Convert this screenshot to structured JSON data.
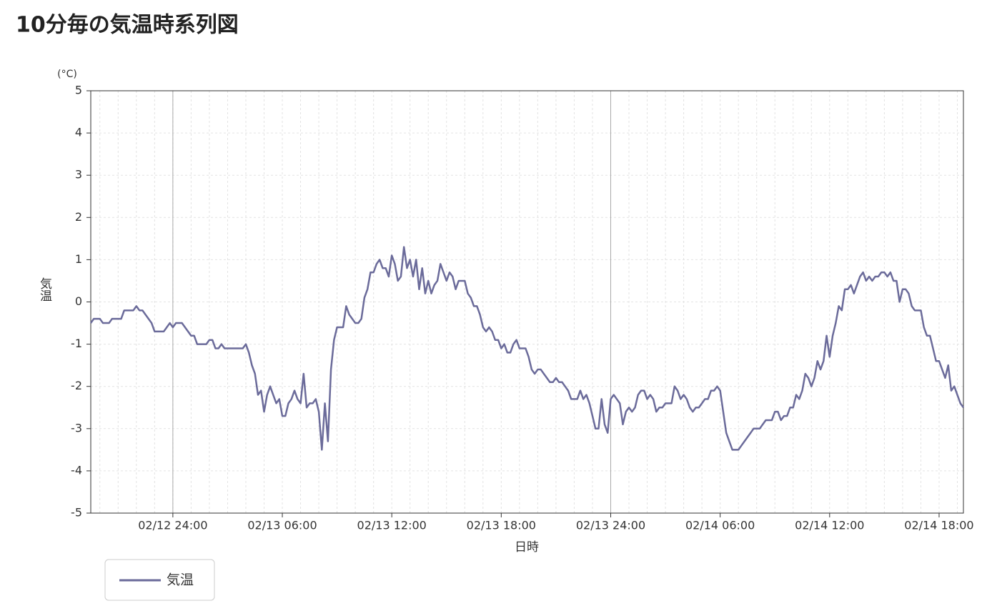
{
  "chart_data": {
    "type": "line",
    "title": "10分毎の気温時系列図",
    "y_unit": "(°C)",
    "ylabel": "気温",
    "xlabel": "日時",
    "x": [
      "02/12 19:30",
      "02/12 19:40",
      "02/12 19:50",
      "02/12 20:00",
      "02/12 20:10",
      "02/12 20:20",
      "02/12 20:30",
      "02/12 20:40",
      "02/12 20:50",
      "02/12 21:00",
      "02/12 21:10",
      "02/12 21:20",
      "02/12 21:30",
      "02/12 21:40",
      "02/12 21:50",
      "02/12 22:00",
      "02/12 22:10",
      "02/12 22:20",
      "02/12 22:30",
      "02/12 22:40",
      "02/12 22:50",
      "02/12 23:00",
      "02/12 23:10",
      "02/12 23:20",
      "02/12 23:30",
      "02/12 23:40",
      "02/12 23:50",
      "02/13 00:00",
      "02/13 00:10",
      "02/13 00:20",
      "02/13 00:30",
      "02/13 00:40",
      "02/13 00:50",
      "02/13 01:00",
      "02/13 01:10",
      "02/13 01:20",
      "02/13 01:30",
      "02/13 01:40",
      "02/13 01:50",
      "02/13 02:00",
      "02/13 02:10",
      "02/13 02:20",
      "02/13 02:30",
      "02/13 02:40",
      "02/13 02:50",
      "02/13 03:00",
      "02/13 03:10",
      "02/13 03:20",
      "02/13 03:30",
      "02/13 03:40",
      "02/13 03:50",
      "02/13 04:00",
      "02/13 04:10",
      "02/13 04:20",
      "02/13 04:30",
      "02/13 04:40",
      "02/13 04:50",
      "02/13 05:00",
      "02/13 05:10",
      "02/13 05:20",
      "02/13 05:30",
      "02/13 05:40",
      "02/13 05:50",
      "02/13 06:00",
      "02/13 06:10",
      "02/13 06:20",
      "02/13 06:30",
      "02/13 06:40",
      "02/13 06:50",
      "02/13 07:00",
      "02/13 07:10",
      "02/13 07:20",
      "02/13 07:30",
      "02/13 07:40",
      "02/13 07:50",
      "02/13 08:00",
      "02/13 08:10",
      "02/13 08:20",
      "02/13 08:30",
      "02/13 08:40",
      "02/13 08:50",
      "02/13 09:00",
      "02/13 09:10",
      "02/13 09:20",
      "02/13 09:30",
      "02/13 09:40",
      "02/13 09:50",
      "02/13 10:00",
      "02/13 10:10",
      "02/13 10:20",
      "02/13 10:30",
      "02/13 10:40",
      "02/13 10:50",
      "02/13 11:00",
      "02/13 11:10",
      "02/13 11:20",
      "02/13 11:30",
      "02/13 11:40",
      "02/13 11:50",
      "02/13 12:00",
      "02/13 12:10",
      "02/13 12:20",
      "02/13 12:30",
      "02/13 12:40",
      "02/13 12:50",
      "02/13 13:00",
      "02/13 13:10",
      "02/13 13:20",
      "02/13 13:30",
      "02/13 13:40",
      "02/13 13:50",
      "02/13 14:00",
      "02/13 14:10",
      "02/13 14:20",
      "02/13 14:30",
      "02/13 14:40",
      "02/13 14:50",
      "02/13 15:00",
      "02/13 15:10",
      "02/13 15:20",
      "02/13 15:30",
      "02/13 15:40",
      "02/13 15:50",
      "02/13 16:00",
      "02/13 16:10",
      "02/13 16:20",
      "02/13 16:30",
      "02/13 16:40",
      "02/13 16:50",
      "02/13 17:00",
      "02/13 17:10",
      "02/13 17:20",
      "02/13 17:30",
      "02/13 17:40",
      "02/13 17:50",
      "02/13 18:00",
      "02/13 18:10",
      "02/13 18:20",
      "02/13 18:30",
      "02/13 18:40",
      "02/13 18:50",
      "02/13 19:00",
      "02/13 19:10",
      "02/13 19:20",
      "02/13 19:30",
      "02/13 19:40",
      "02/13 19:50",
      "02/13 20:00",
      "02/13 20:10",
      "02/13 20:20",
      "02/13 20:30",
      "02/13 20:40",
      "02/13 20:50",
      "02/13 21:00",
      "02/13 21:10",
      "02/13 21:20",
      "02/13 21:30",
      "02/13 21:40",
      "02/13 21:50",
      "02/13 22:00",
      "02/13 22:10",
      "02/13 22:20",
      "02/13 22:30",
      "02/13 22:40",
      "02/13 22:50",
      "02/13 23:00",
      "02/13 23:10",
      "02/13 23:20",
      "02/13 23:30",
      "02/13 23:40",
      "02/13 23:50",
      "02/14 00:00",
      "02/14 00:10",
      "02/14 00:20",
      "02/14 00:30",
      "02/14 00:40",
      "02/14 00:50",
      "02/14 01:00",
      "02/14 01:10",
      "02/14 01:20",
      "02/14 01:30",
      "02/14 01:40",
      "02/14 01:50",
      "02/14 02:00",
      "02/14 02:10",
      "02/14 02:20",
      "02/14 02:30",
      "02/14 02:40",
      "02/14 02:50",
      "02/14 03:00",
      "02/14 03:10",
      "02/14 03:20",
      "02/14 03:30",
      "02/14 03:40",
      "02/14 03:50",
      "02/14 04:00",
      "02/14 04:10",
      "02/14 04:20",
      "02/14 04:30",
      "02/14 04:40",
      "02/14 04:50",
      "02/14 05:00",
      "02/14 05:10",
      "02/14 05:20",
      "02/14 05:30",
      "02/14 05:40",
      "02/14 05:50",
      "02/14 06:00",
      "02/14 06:10",
      "02/14 06:20",
      "02/14 06:30",
      "02/14 06:40",
      "02/14 06:50",
      "02/14 07:00",
      "02/14 07:10",
      "02/14 07:20",
      "02/14 07:30",
      "02/14 07:40",
      "02/14 07:50",
      "02/14 08:00",
      "02/14 08:10",
      "02/14 08:20",
      "02/14 08:30",
      "02/14 08:40",
      "02/14 08:50",
      "02/14 09:00",
      "02/14 09:10",
      "02/14 09:20",
      "02/14 09:30",
      "02/14 09:40",
      "02/14 09:50",
      "02/14 10:00",
      "02/14 10:10",
      "02/14 10:20",
      "02/14 10:30",
      "02/14 10:40",
      "02/14 10:50",
      "02/14 11:00",
      "02/14 11:10",
      "02/14 11:20",
      "02/14 11:30",
      "02/14 11:40",
      "02/14 11:50",
      "02/14 12:00",
      "02/14 12:10",
      "02/14 12:20",
      "02/14 12:30",
      "02/14 12:40",
      "02/14 12:50",
      "02/14 13:00",
      "02/14 13:10",
      "02/14 13:20",
      "02/14 13:30",
      "02/14 13:40",
      "02/14 13:50",
      "02/14 14:00",
      "02/14 14:10",
      "02/14 14:20",
      "02/14 14:30",
      "02/14 14:40",
      "02/14 14:50",
      "02/14 15:00",
      "02/14 15:10",
      "02/14 15:20",
      "02/14 15:30",
      "02/14 15:40",
      "02/14 15:50",
      "02/14 16:00",
      "02/14 16:10",
      "02/14 16:20",
      "02/14 16:30",
      "02/14 16:40",
      "02/14 16:50",
      "02/14 17:00",
      "02/14 17:10",
      "02/14 17:20",
      "02/14 17:30",
      "02/14 17:40",
      "02/14 17:50",
      "02/14 18:00",
      "02/14 18:10",
      "02/14 18:20",
      "02/14 18:30",
      "02/14 18:40",
      "02/14 18:50",
      "02/14 19:00",
      "02/14 19:10",
      "02/14 19:20"
    ],
    "series": [
      {
        "name": "気温",
        "color": "#6b6b9a",
        "values": [
          -0.5,
          -0.4,
          -0.4,
          -0.4,
          -0.5,
          -0.5,
          -0.5,
          -0.4,
          -0.4,
          -0.4,
          -0.4,
          -0.2,
          -0.2,
          -0.2,
          -0.2,
          -0.1,
          -0.2,
          -0.2,
          -0.3,
          -0.4,
          -0.5,
          -0.7,
          -0.7,
          -0.7,
          -0.7,
          -0.6,
          -0.5,
          -0.6,
          -0.5,
          -0.5,
          -0.5,
          -0.6,
          -0.7,
          -0.8,
          -0.8,
          -1.0,
          -1.0,
          -1.0,
          -1.0,
          -0.9,
          -0.9,
          -1.1,
          -1.1,
          -1.0,
          -1.1,
          -1.1,
          -1.1,
          -1.1,
          -1.1,
          -1.1,
          -1.1,
          -1.0,
          -1.2,
          -1.5,
          -1.7,
          -2.2,
          -2.1,
          -2.6,
          -2.2,
          -2.0,
          -2.2,
          -2.4,
          -2.3,
          -2.7,
          -2.7,
          -2.4,
          -2.3,
          -2.1,
          -2.3,
          -2.4,
          -1.7,
          -2.5,
          -2.4,
          -2.4,
          -2.3,
          -2.6,
          -3.5,
          -2.4,
          -3.3,
          -1.6,
          -0.9,
          -0.6,
          -0.6,
          -0.6,
          -0.1,
          -0.3,
          -0.4,
          -0.5,
          -0.5,
          -0.4,
          0.1,
          0.3,
          0.7,
          0.7,
          0.9,
          1.0,
          0.8,
          0.8,
          0.6,
          1.1,
          0.9,
          0.5,
          0.6,
          1.3,
          0.8,
          1.0,
          0.6,
          1.0,
          0.3,
          0.8,
          0.2,
          0.5,
          0.2,
          0.4,
          0.5,
          0.9,
          0.7,
          0.5,
          0.7,
          0.6,
          0.3,
          0.5,
          0.5,
          0.5,
          0.2,
          0.1,
          -0.1,
          -0.1,
          -0.3,
          -0.6,
          -0.7,
          -0.6,
          -0.7,
          -0.9,
          -0.9,
          -1.1,
          -1.0,
          -1.2,
          -1.2,
          -1.0,
          -0.9,
          -1.1,
          -1.1,
          -1.1,
          -1.3,
          -1.6,
          -1.7,
          -1.6,
          -1.6,
          -1.7,
          -1.8,
          -1.9,
          -1.9,
          -1.8,
          -1.9,
          -1.9,
          -2.0,
          -2.1,
          -2.3,
          -2.3,
          -2.3,
          -2.1,
          -2.3,
          -2.2,
          -2.4,
          -2.7,
          -3.0,
          -3.0,
          -2.3,
          -2.9,
          -3.1,
          -2.3,
          -2.2,
          -2.3,
          -2.4,
          -2.9,
          -2.6,
          -2.5,
          -2.6,
          -2.5,
          -2.2,
          -2.1,
          -2.1,
          -2.3,
          -2.2,
          -2.3,
          -2.6,
          -2.5,
          -2.5,
          -2.4,
          -2.4,
          -2.4,
          -2.0,
          -2.1,
          -2.3,
          -2.2,
          -2.3,
          -2.5,
          -2.6,
          -2.5,
          -2.5,
          -2.4,
          -2.3,
          -2.3,
          -2.1,
          -2.1,
          -2.0,
          -2.1,
          -2.6,
          -3.1,
          -3.3,
          -3.5,
          -3.5,
          -3.5,
          -3.4,
          -3.3,
          -3.2,
          -3.1,
          -3.0,
          -3.0,
          -3.0,
          -2.9,
          -2.8,
          -2.8,
          -2.8,
          -2.6,
          -2.6,
          -2.8,
          -2.7,
          -2.7,
          -2.5,
          -2.5,
          -2.2,
          -2.3,
          -2.1,
          -1.7,
          -1.8,
          -2.0,
          -1.8,
          -1.4,
          -1.6,
          -1.4,
          -0.8,
          -1.3,
          -0.8,
          -0.5,
          -0.1,
          -0.2,
          0.3,
          0.3,
          0.4,
          0.2,
          0.4,
          0.6,
          0.7,
          0.5,
          0.6,
          0.5,
          0.6,
          0.6,
          0.7,
          0.7,
          0.6,
          0.7,
          0.5,
          0.5,
          0.0,
          0.3,
          0.3,
          0.2,
          -0.1,
          -0.2,
          -0.2,
          -0.2,
          -0.6,
          -0.8,
          -0.8,
          -1.1,
          -1.4,
          -1.4,
          -1.6,
          -1.8,
          -1.5,
          -2.1,
          -2.0,
          -2.2,
          -2.4,
          -2.5
        ]
      }
    ],
    "xlim": [
      "02/12 19:30",
      "02/14 19:20"
    ],
    "xticks": [
      {
        "value": "02/13 00:00",
        "label": "02/12 24:00"
      },
      "02/13 06:00",
      "02/13 12:00",
      "02/13 18:00",
      {
        "value": "02/14 00:00",
        "label": "02/13 24:00"
      },
      "02/14 06:00",
      "02/14 12:00",
      "02/14 18:00"
    ],
    "ylim": [
      -5,
      5
    ],
    "yticks": [
      -5,
      -4,
      -3,
      -2,
      -1,
      0,
      1,
      2,
      3,
      4,
      5
    ],
    "grid": true,
    "legend": "bottom-left"
  }
}
